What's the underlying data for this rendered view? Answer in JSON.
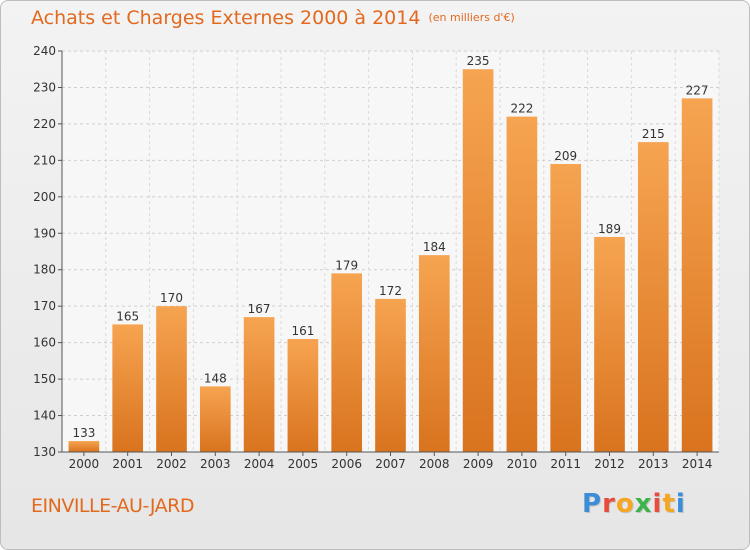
{
  "header": {
    "title": "Achats et Charges Externes 2000 à 2014",
    "subtitle": "(en milliers d'€)"
  },
  "footer": {
    "commune": "EINVILLE-AU-JARD",
    "logo_letters": [
      "P",
      "r",
      "o",
      "x",
      "i",
      "t",
      "i"
    ],
    "logo_colors": [
      "#3a8dd6",
      "#e84c3d",
      "#f5a623",
      "#3cb44b",
      "#e84c3d",
      "#f5a623",
      "#3a8dd6"
    ]
  },
  "chart_data": {
    "type": "bar",
    "categories": [
      "2000",
      "2001",
      "2002",
      "2003",
      "2004",
      "2005",
      "2006",
      "2007",
      "2008",
      "2009",
      "2010",
      "2011",
      "2012",
      "2013",
      "2014"
    ],
    "values": [
      133,
      165,
      170,
      148,
      167,
      161,
      179,
      172,
      184,
      235,
      222,
      209,
      189,
      215,
      227
    ],
    "ylim": [
      130,
      240
    ],
    "yticks": [
      130,
      140,
      150,
      160,
      170,
      180,
      190,
      200,
      210,
      220,
      230,
      240
    ],
    "grid": true,
    "bar_color": "#f0933a"
  }
}
